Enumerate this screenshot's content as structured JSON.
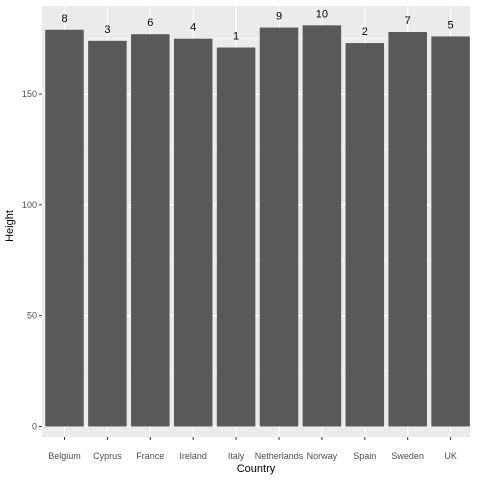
{
  "chart_data": {
    "type": "bar",
    "title": "",
    "xlabel": "Country",
    "ylabel": "Height",
    "categories": [
      "Belgium",
      "Cyprus",
      "France",
      "Ireland",
      "Italy",
      "Netherlands",
      "Norway",
      "Spain",
      "Sweden",
      "UK"
    ],
    "values": [
      179,
      174,
      177,
      175,
      171,
      180,
      181,
      173,
      178,
      176
    ],
    "data_labels": [
      "8",
      "3",
      "6",
      "4",
      "1",
      "9",
      "10",
      "2",
      "7",
      "5"
    ],
    "ylim": [
      0,
      181
    ],
    "yticks": [
      0,
      50,
      100,
      150
    ],
    "grid": true,
    "legend": "none",
    "colors": {
      "bar": "#595959",
      "panel": "#ebebeb",
      "grid_major": "#ffffff",
      "grid_minor": "#f5f5f5"
    }
  }
}
